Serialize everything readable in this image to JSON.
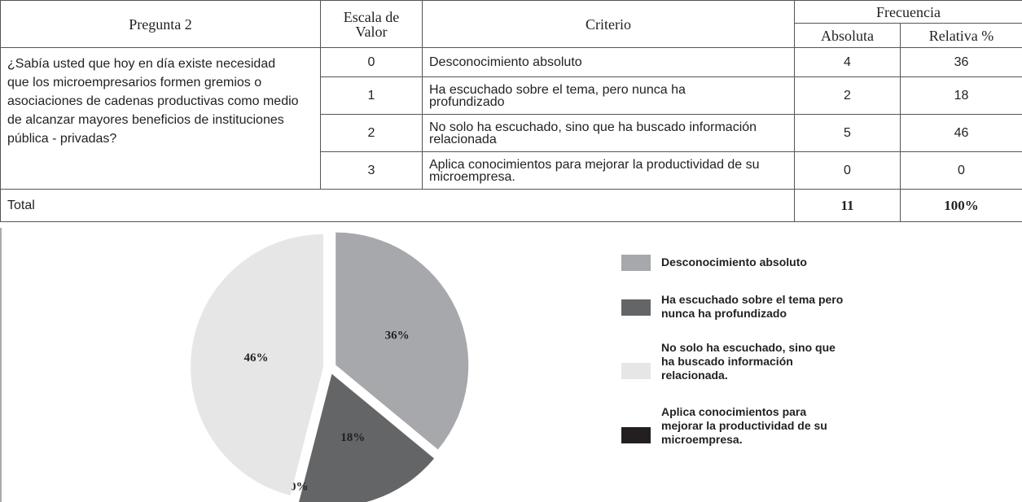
{
  "table": {
    "header": {
      "question": "Pregunta 2",
      "scale": "Escala de Valor",
      "criterion": "Criterio",
      "frequency": "Frecuencia",
      "absolute": "Absoluta",
      "relative": "Relativa %"
    },
    "question": "¿Sabía usted que hoy en día existe necesidad  que los microempresarios formen gremios o asociaciones de cadenas productivas como medio de alcanzar mayores beneficios de instituciones  pública - privadas?",
    "rows": [
      [
        "0",
        "Desconocimiento absoluto",
        "4",
        "36"
      ],
      [
        "1",
        "Ha escuchado sobre el tema, pero nunca ha profundizado",
        "2",
        "18"
      ],
      [
        "2",
        "No solo ha escuchado, sino que ha buscado información relacionada",
        "5",
        "46"
      ],
      [
        "3",
        "Aplica conocimientos para mejorar la productividad de su microempresa.",
        "0",
        "0"
      ]
    ],
    "total": [
      "Total",
      "11",
      "100%"
    ]
  },
  "chart_data": {
    "type": "pie",
    "categories": [
      "Desconocimiento absoluto",
      "Ha escuchado sobre el tema pero nunca ha profundizado",
      "No solo ha escuchado, sino que ha buscado información relacionada.",
      "Aplica conocimientos para mejorar la productividad de su microempresa."
    ],
    "values": [
      36,
      18,
      46,
      0
    ],
    "value_labels": [
      "36%",
      "18%",
      "46%",
      "0%"
    ],
    "slice_order": [
      0,
      1,
      3,
      2
    ],
    "colors": [
      "#a7a8ab",
      "#646567",
      "#e6e6e7",
      "#231f20"
    ]
  }
}
